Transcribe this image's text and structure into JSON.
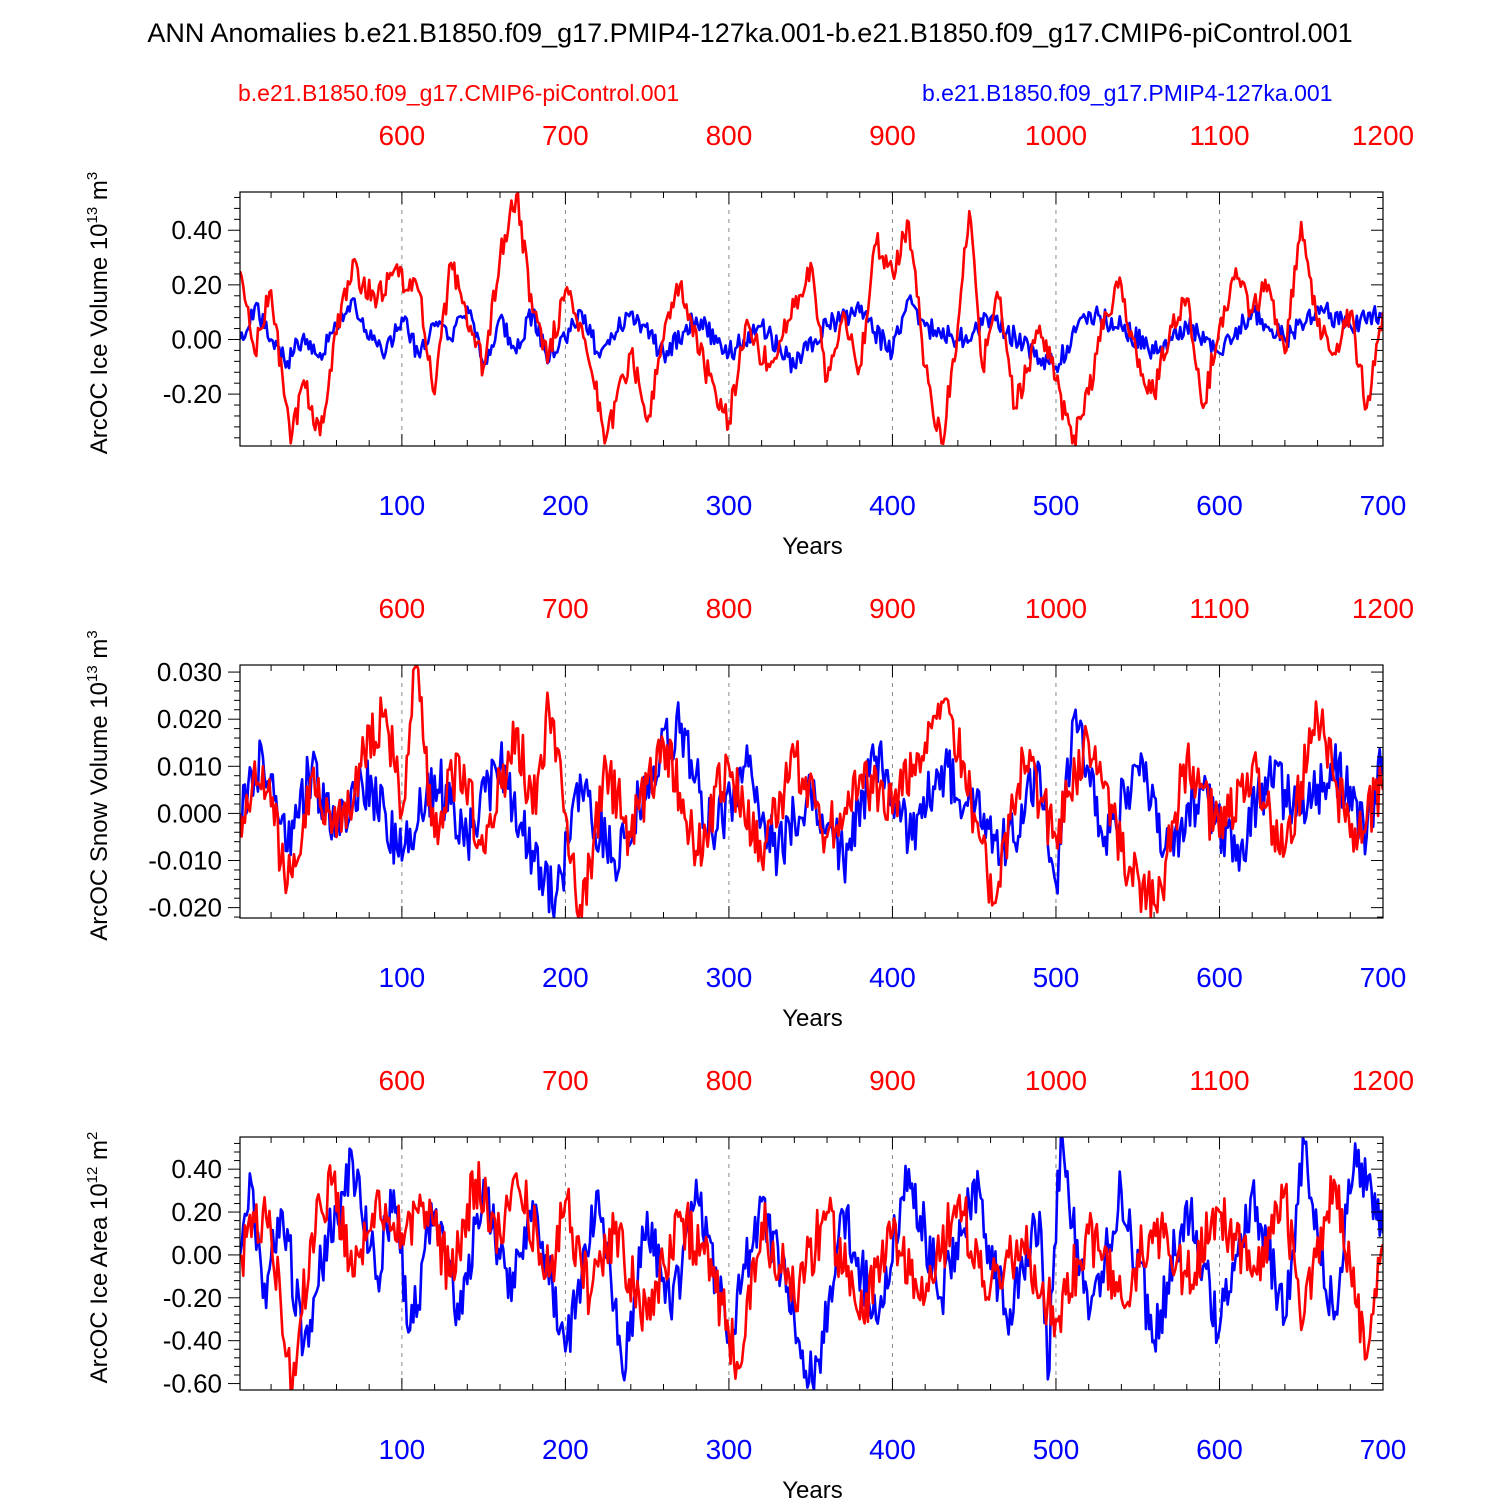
{
  "title": "ANN Anomalies b.e21.B1850.f09_g17.PMIP4-127ka.001-b.e21.B1850.f09_g17.CMIP6-piControl.001",
  "legend": {
    "control_label": "b.e21.B1850.f09_g17.CMIP6-piControl.001",
    "experiment_label": "b.e21.B1850.f09_g17.PMIP4-127ka.001"
  },
  "colors": {
    "control": "#ff0000",
    "experiment": "#0000ff",
    "axis": "#000000",
    "grid": "#888888"
  },
  "chart_data": [
    {
      "type": "line",
      "ylabel": "ArcOC Ice Volume 10^13 m^3",
      "ylabel_parts": {
        "base": "ArcOC Ice Volume 10",
        "exp": "13",
        "unit": " m",
        "unit_exp": "3"
      },
      "xlabel": "Years",
      "xlim_bottom": [
        1,
        700
      ],
      "xlim_top": [
        501,
        1200
      ],
      "bottom_ticks": [
        100,
        200,
        300,
        400,
        500,
        600,
        700
      ],
      "top_ticks": [
        600,
        700,
        800,
        900,
        1000,
        1100,
        1200
      ],
      "ylim": [
        -0.39,
        0.54
      ],
      "yticks": [
        -0.2,
        0.0,
        0.2,
        0.4
      ],
      "ytick_labels": [
        "-0.20",
        "0.00",
        "0.20",
        "0.40"
      ],
      "series": [
        {
          "name": "b.e21.B1850.f09_g17.CMIP6-piControl.001",
          "color": "#ff0000",
          "x": [
            1,
            10,
            20,
            32,
            40,
            50,
            60,
            70,
            76,
            85,
            95,
            110,
            120,
            130,
            140,
            150,
            160,
            170,
            180,
            190,
            200,
            210,
            225,
            240,
            250,
            260,
            270,
            285,
            300,
            310,
            325,
            340,
            350,
            360,
            370,
            380,
            390,
            400,
            410,
            420,
            430,
            440,
            447,
            455,
            465,
            475,
            490,
            500,
            510,
            520,
            530,
            540,
            550,
            560,
            570,
            580,
            590,
            600,
            610,
            620,
            630,
            640,
            650,
            660,
            670,
            680,
            690,
            700
          ],
          "values": [
            0.25,
            -0.05,
            0.18,
            -0.38,
            -0.15,
            -0.35,
            0.02,
            0.29,
            0.2,
            0.15,
            0.25,
            0.18,
            -0.2,
            0.28,
            0.05,
            -0.1,
            0.3,
            0.53,
            0.1,
            -0.05,
            0.18,
            0.05,
            -0.36,
            -0.05,
            -0.3,
            0.0,
            0.2,
            -0.1,
            -0.3,
            0.05,
            -0.1,
            0.12,
            0.28,
            -0.15,
            0.1,
            -0.1,
            0.35,
            0.25,
            0.43,
            -0.1,
            -0.38,
            0.05,
            0.47,
            -0.1,
            0.15,
            -0.25,
            0.05,
            -0.15,
            -0.38,
            -0.2,
            0.1,
            0.2,
            -0.1,
            -0.2,
            0.05,
            0.15,
            -0.25,
            0.05,
            0.26,
            0.1,
            0.2,
            -0.05,
            0.43,
            0.05,
            -0.05,
            0.1,
            -0.25,
            0.1
          ]
        },
        {
          "name": "b.e21.B1850.f09_g17.PMIP4-127ka.001",
          "color": "#0000ff",
          "x": [
            1,
            10,
            20,
            30,
            40,
            50,
            60,
            70,
            80,
            90,
            100,
            110,
            120,
            130,
            140,
            150,
            160,
            170,
            180,
            190,
            200,
            210,
            220,
            240,
            260,
            280,
            300,
            320,
            340,
            360,
            380,
            400,
            410,
            420,
            440,
            460,
            480,
            500,
            520,
            540,
            560,
            580,
            600,
            620,
            640,
            660,
            680,
            700
          ],
          "values": [
            0.0,
            0.12,
            0.0,
            -0.08,
            0.02,
            -0.05,
            0.05,
            0.15,
            0.0,
            -0.05,
            0.08,
            -0.05,
            0.05,
            0.0,
            0.12,
            -0.1,
            0.08,
            -0.05,
            0.1,
            -0.08,
            0.0,
            0.1,
            -0.05,
            0.1,
            -0.05,
            0.08,
            -0.05,
            0.05,
            -0.1,
            0.05,
            0.1,
            -0.05,
            0.15,
            0.05,
            0.0,
            0.08,
            -0.02,
            -0.1,
            0.1,
            0.05,
            -0.05,
            0.05,
            -0.05,
            0.1,
            0.0,
            0.12,
            0.05,
            0.1
          ]
        }
      ]
    },
    {
      "type": "line",
      "ylabel": "ArcOC Snow Volume 10^13 m^3",
      "ylabel_parts": {
        "base": "ArcOC Snow Volume 10",
        "exp": "13",
        "unit": " m",
        "unit_exp": "3"
      },
      "xlabel": "Years",
      "xlim_bottom": [
        1,
        700
      ],
      "xlim_top": [
        501,
        1200
      ],
      "bottom_ticks": [
        100,
        200,
        300,
        400,
        500,
        600,
        700
      ],
      "top_ticks": [
        600,
        700,
        800,
        900,
        1000,
        1100,
        1200
      ],
      "ylim": [
        -0.0222,
        0.0315
      ],
      "yticks": [
        -0.02,
        -0.01,
        0.0,
        0.01,
        0.02,
        0.03
      ],
      "ytick_labels": [
        "-0.020",
        "-0.010",
        "0.000",
        "0.010",
        "0.020",
        "0.030"
      ],
      "series": [
        {
          "name": "b.e21.B1850.f09_g17.CMIP6-piControl.001",
          "color": "#ff0000",
          "x": [
            1,
            15,
            30,
            45,
            60,
            75,
            90,
            100,
            108,
            120,
            135,
            150,
            170,
            180,
            190,
            200,
            210,
            225,
            240,
            260,
            280,
            300,
            320,
            340,
            360,
            380,
            400,
            420,
            434,
            450,
            462,
            480,
            500,
            520,
            540,
            562,
            580,
            600,
            620,
            640,
            660,
            680,
            700
          ],
          "values": [
            0.0,
            0.01,
            -0.015,
            0.008,
            -0.005,
            0.01,
            0.022,
            0.0,
            0.031,
            -0.005,
            0.012,
            -0.008,
            0.018,
            0.0,
            0.022,
            0.0,
            -0.022,
            0.01,
            -0.005,
            0.015,
            -0.008,
            0.01,
            -0.01,
            0.012,
            -0.005,
            0.008,
            0.0,
            0.015,
            0.024,
            0.0,
            -0.019,
            0.012,
            -0.005,
            0.015,
            -0.008,
            -0.021,
            0.012,
            -0.005,
            0.01,
            -0.008,
            0.02,
            -0.005,
            0.005
          ]
        },
        {
          "name": "b.e21.B1850.f09_g17.PMIP4-127ka.001",
          "color": "#0000ff",
          "x": [
            1,
            15,
            30,
            45,
            60,
            75,
            90,
            100,
            120,
            140,
            160,
            180,
            194,
            210,
            230,
            250,
            271,
            290,
            310,
            330,
            350,
            370,
            390,
            410,
            430,
            450,
            470,
            490,
            500,
            512,
            530,
            550,
            570,
            590,
            610,
            630,
            650,
            670,
            690,
            700
          ],
          "values": [
            0.0,
            0.012,
            -0.008,
            0.01,
            -0.005,
            0.008,
            0.0,
            -0.01,
            0.008,
            -0.005,
            0.01,
            -0.008,
            -0.018,
            0.005,
            -0.01,
            0.008,
            0.019,
            -0.005,
            0.01,
            -0.008,
            0.005,
            -0.01,
            0.012,
            -0.005,
            0.01,
            0.0,
            -0.008,
            0.01,
            -0.015,
            0.022,
            -0.005,
            0.01,
            -0.008,
            0.005,
            -0.01,
            0.008,
            0.0,
            0.01,
            -0.005,
            0.012
          ]
        }
      ]
    },
    {
      "type": "line",
      "ylabel": "ArcOC Ice Area 10^12 m^2",
      "ylabel_parts": {
        "base": "ArcOC Ice Area 10",
        "exp": "12",
        "unit": " m",
        "unit_exp": "2"
      },
      "xlabel": "Years",
      "xlim_bottom": [
        1,
        700
      ],
      "xlim_top": [
        501,
        1200
      ],
      "bottom_ticks": [
        100,
        200,
        300,
        400,
        500,
        600,
        700
      ],
      "top_ticks": [
        600,
        700,
        800,
        900,
        1000,
        1100,
        1200
      ],
      "ylim": [
        -0.63,
        0.55
      ],
      "yticks": [
        -0.6,
        -0.4,
        -0.2,
        0.0,
        0.2,
        0.4
      ],
      "ytick_labels": [
        "-0.60",
        "-0.40",
        "-0.20",
        "0.00",
        "0.20",
        "0.40"
      ],
      "series": [
        {
          "name": "b.e21.B1850.f09_g17.CMIP6-piControl.001",
          "color": "#ff0000",
          "x": [
            1,
            15,
            25,
            32,
            45,
            58,
            70,
            85,
            100,
            115,
            130,
            145,
            160,
            170,
            190,
            200,
            215,
            230,
            250,
            270,
            290,
            305,
            320,
            340,
            360,
            380,
            400,
            420,
            440,
            460,
            480,
            500,
            520,
            540,
            560,
            580,
            600,
            620,
            640,
            650,
            670,
            690,
            700
          ],
          "values": [
            0.0,
            0.2,
            -0.1,
            -0.63,
            0.1,
            0.35,
            -0.1,
            0.3,
            0.1,
            0.2,
            -0.1,
            0.35,
            0.1,
            0.38,
            -0.1,
            0.25,
            -0.2,
            0.1,
            -0.3,
            0.2,
            -0.1,
            -0.5,
            0.15,
            -0.2,
            0.2,
            -0.3,
            0.1,
            -0.2,
            0.25,
            -0.15,
            0.05,
            -0.3,
            0.1,
            -0.2,
            0.15,
            -0.1,
            0.2,
            -0.1,
            0.3,
            -0.35,
            0.35,
            -0.48,
            0.05
          ]
        },
        {
          "name": "b.e21.B1850.f09_g17.PMIP4-127ka.001",
          "color": "#0000ff",
          "x": [
            1,
            7,
            15,
            27,
            40,
            55,
            70,
            85,
            95,
            105,
            120,
            135,
            150,
            165,
            180,
            200,
            220,
            235,
            250,
            265,
            280,
            300,
            320,
            340,
            352,
            370,
            390,
            410,
            430,
            450,
            470,
            490,
            495,
            503,
            520,
            540,
            560,
            580,
            600,
            620,
            640,
            652,
            670,
            683,
            700
          ],
          "values": [
            0.0,
            0.38,
            -0.2,
            0.2,
            -0.42,
            0.1,
            0.43,
            -0.1,
            0.3,
            -0.35,
            0.2,
            -0.3,
            0.35,
            -0.2,
            0.25,
            -0.45,
            0.3,
            -0.55,
            0.2,
            -0.3,
            0.35,
            -0.4,
            0.25,
            -0.3,
            -0.63,
            0.2,
            -0.3,
            0.4,
            -0.2,
            0.35,
            -0.3,
            0.2,
            -0.58,
            0.55,
            -0.3,
            0.3,
            -0.4,
            0.25,
            -0.35,
            0.3,
            -0.3,
            0.52,
            -0.3,
            0.52,
            0.1
          ]
        }
      ]
    }
  ]
}
